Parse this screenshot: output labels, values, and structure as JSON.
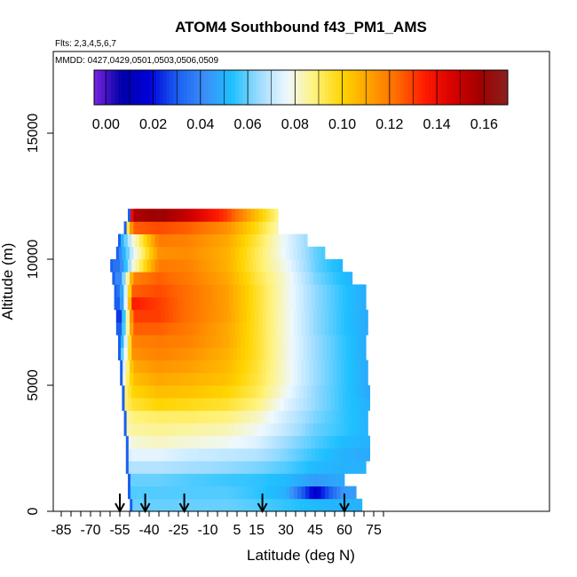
{
  "chart_data": {
    "type": "heatmap",
    "title": "ATOM4 Southbound f43_PM1_AMS",
    "flights_label": "Flts: 2,3,4,5,6,7",
    "dates_label": "MMDD: 0427,0429,0501,0503,0506,0509",
    "xlabel": "Latitude (deg N)",
    "ylabel": "Altitude (m)",
    "xlim": [
      -90,
      90
    ],
    "ylim": [
      0,
      17500
    ],
    "x_ticks": [
      "-85",
      "-70",
      "-55",
      "-40",
      "-25",
      "-10",
      "5",
      "15",
      "30",
      "45",
      "60",
      "75"
    ],
    "x_tick_values": [
      -85,
      -70,
      -55,
      -40,
      -25,
      -10,
      5,
      15,
      30,
      45,
      60,
      75
    ],
    "y_ticks": [
      "0",
      "5000",
      "10000",
      "15000"
    ],
    "y_tick_values": [
      0,
      5000,
      10000,
      15000
    ],
    "colorbar": {
      "range": [
        -0.005,
        0.17
      ],
      "tick_labels": [
        "0.00",
        "0.02",
        "0.04",
        "0.06",
        "0.08",
        "0.10",
        "0.12",
        "0.14",
        "0.16"
      ],
      "tick_values": [
        0,
        0.02,
        0.04,
        0.06,
        0.08,
        0.1,
        0.12,
        0.14,
        0.16
      ],
      "colors": [
        "#7a24e0",
        "#0000a8",
        "#0000d8",
        "#1a5ff0",
        "#3b8ef8",
        "#1ec0ff",
        "#9fdcff",
        "#eef8ff",
        "#fff27a",
        "#ffd400",
        "#ffa000",
        "#ff6a00",
        "#ff1a00",
        "#d80000",
        "#a00000",
        "#8a2020"
      ],
      "location": "top-left inside plot"
    },
    "altitude_bins_m": [
      250,
      750,
      1250,
      1750,
      2250,
      2750,
      3250,
      3750,
      4250,
      4750,
      5250,
      5750,
      6250,
      6750,
      7250,
      7750,
      8250,
      8750,
      9250,
      9750,
      10250,
      10750,
      11250,
      11750
    ],
    "latitude_extent_per_bin": [
      [
        -49,
        69
      ],
      [
        -50,
        66
      ],
      [
        -50,
        60
      ],
      [
        -51,
        71
      ],
      [
        -51,
        72
      ],
      [
        -51,
        72
      ],
      [
        -52,
        72
      ],
      [
        -52,
        72
      ],
      [
        -53,
        72
      ],
      [
        -53,
        72
      ],
      [
        -54,
        71
      ],
      [
        -54,
        71
      ],
      [
        -55,
        71
      ],
      [
        -55,
        71
      ],
      [
        -56,
        71
      ],
      [
        -56,
        71
      ],
      [
        -57,
        71
      ],
      [
        -57,
        70
      ],
      [
        -58,
        63
      ],
      [
        -59,
        59
      ],
      [
        -56,
        49
      ],
      [
        -55,
        41
      ],
      [
        -52,
        26
      ],
      [
        -50,
        26
      ]
    ],
    "profile_anchors_lat": [
      -55,
      -48,
      -35,
      -20,
      0,
      15,
      30,
      45,
      60,
      72
    ],
    "profile_values": [
      [
        0.06,
        0.06,
        0.06,
        0.06,
        0.06,
        0.058,
        0.055,
        0.052,
        0.05,
        0.05
      ],
      [
        0.055,
        0.058,
        0.058,
        0.058,
        0.058,
        0.055,
        0.05,
        0.015,
        0.045,
        0.045
      ],
      [
        0.06,
        0.06,
        0.06,
        0.058,
        0.056,
        0.055,
        0.052,
        0.045,
        0.048,
        0.048
      ],
      [
        0.065,
        0.068,
        0.068,
        0.066,
        0.064,
        0.062,
        0.058,
        0.052,
        0.05,
        0.05
      ],
      [
        0.07,
        0.075,
        0.075,
        0.072,
        0.07,
        0.068,
        0.062,
        0.055,
        0.05,
        0.048
      ],
      [
        0.075,
        0.08,
        0.082,
        0.08,
        0.078,
        0.074,
        0.065,
        0.058,
        0.052,
        0.05
      ],
      [
        0.08,
        0.085,
        0.086,
        0.085,
        0.083,
        0.078,
        0.07,
        0.06,
        0.055,
        0.05
      ],
      [
        0.08,
        0.088,
        0.09,
        0.09,
        0.088,
        0.082,
        0.072,
        0.062,
        0.055,
        0.05
      ],
      [
        0.085,
        0.095,
        0.1,
        0.098,
        0.095,
        0.088,
        0.075,
        0.064,
        0.055,
        0.05
      ],
      [
        0.08,
        0.1,
        0.105,
        0.104,
        0.1,
        0.092,
        0.078,
        0.064,
        0.055,
        0.048
      ],
      [
        0.07,
        0.105,
        0.11,
        0.108,
        0.104,
        0.094,
        0.08,
        0.065,
        0.055,
        0.048
      ],
      [
        0.06,
        0.11,
        0.114,
        0.112,
        0.106,
        0.095,
        0.08,
        0.065,
        0.055,
        0.048
      ],
      [
        0.05,
        0.115,
        0.118,
        0.115,
        0.108,
        0.096,
        0.08,
        0.065,
        0.055,
        0.048
      ],
      [
        0.04,
        0.118,
        0.12,
        0.118,
        0.11,
        0.096,
        0.08,
        0.065,
        0.055,
        0.048
      ],
      [
        0.03,
        0.125,
        0.125,
        0.12,
        0.11,
        0.096,
        0.08,
        0.064,
        0.054,
        0.048
      ],
      [
        0.025,
        0.13,
        0.13,
        0.122,
        0.112,
        0.096,
        0.08,
        0.064,
        0.054,
        0.048
      ],
      [
        0.03,
        0.135,
        0.13,
        0.122,
        0.112,
        0.096,
        0.08,
        0.064,
        0.054,
        0.048
      ],
      [
        0.035,
        0.125,
        0.128,
        0.122,
        0.112,
        0.096,
        0.08,
        0.064,
        0.054,
        0.048
      ],
      [
        0.04,
        0.118,
        0.125,
        0.12,
        0.11,
        0.094,
        0.08,
        0.062,
        0.052,
        0.048
      ],
      [
        0.035,
        0.08,
        0.12,
        0.118,
        0.108,
        0.092,
        0.078,
        0.06,
        0.05,
        0.048
      ],
      [
        0.04,
        0.075,
        0.115,
        0.116,
        0.108,
        0.092,
        0.076,
        0.06,
        0.05,
        0.048
      ],
      [
        0.045,
        0.08,
        0.12,
        0.118,
        0.11,
        0.094,
        0.076,
        0.06,
        0.05,
        0.048
      ],
      [
        0.05,
        0.125,
        0.128,
        0.125,
        0.115,
        0.098,
        0.078,
        0.06,
        0.05,
        0.048
      ],
      [
        0.06,
        0.155,
        0.16,
        0.15,
        0.13,
        0.105,
        0.08,
        0.06,
        0.05,
        0.048
      ]
    ],
    "profile_arrows_lat": [
      -55,
      -42,
      -22,
      18,
      60
    ]
  }
}
